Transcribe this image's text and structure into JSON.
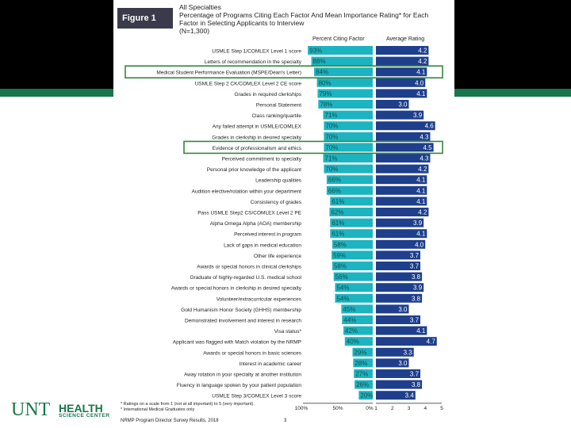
{
  "figure_label": "Figure 1",
  "logo": {
    "primary": "UNT",
    "secondary": "HEALTH",
    "tertiary": "SCIENCE CENTER"
  },
  "footnote_1": "* Ratings on a scale from 1 (not at all important) to 5 (very important).",
  "footnote_2": "* International Medical Graduates only",
  "source": "NRMP Program Director Survey Results, 2018",
  "page_number": "3",
  "colors": {
    "teal": "#1cb4c0",
    "navy": "#1f3f8c",
    "green": "#17764a",
    "highlight": "#2e8a3c"
  },
  "chart_data": {
    "type": "bar",
    "title": "All Specialties\nPercentage of Programs Citing Each Factor And Mean Importance Rating* for Each Factor in Selecting Applicants to Interview\n(N=1,300)",
    "title_lines": [
      "All Specialties",
      "Percentage of Programs Citing Each Factor And Mean Importance Rating* for Each",
      "Factor in Selecting Applicants to Interview",
      "(N=1,300)"
    ],
    "series": [
      {
        "name": "Percent Citing Factor",
        "unit": "%"
      },
      {
        "name": "Average Rating",
        "unit": "rating"
      }
    ],
    "categories": [
      "USMLE Step 1/COMLEX Level 1 score",
      "Letters of recommendation in the specialty",
      "Medical Student Performance Evaluation (MSPE/Dean's Letter)",
      "USMLE Step 2 CK/COMLEX Level 2 CE score",
      "Grades in required clerkships",
      "Personal Statement",
      "Class ranking/quartile",
      "Any failed attempt in USMLE/COMLEX",
      "Grades in clerkship in desired specialty",
      "Evidence of professionalism and ethics",
      "Perceived commitment to specialty",
      "Personal prior knowledge of the applicant",
      "Leadership qualities",
      "Audition elective/rotation within your department",
      "Consistency of grades",
      "Pass USMLE Step2 CS/COMLEX Level 2 PE",
      "Alpha Omega Alpha (AOA) membership",
      "Perceived interest in program",
      "Lack of gaps in medical education",
      "Other life experience",
      "Awards or special honors in clinical clerkships",
      "Graduate of highly-regarded U.S. medical school",
      "Awards or special honors in clerkship in desired specialty",
      "Volunteer/extracurricular experiences",
      "Gold Humanism Honor Society (GHHS) membership",
      "Demonstrated involvement and interest in research",
      "Visa status*",
      "Applicant was flagged with Match violation by the NRMP",
      "Awards or special honors in basic sciences",
      "Interest in academic career",
      "Away rotation in your specialty at another institution",
      "Fluency in language spoken by your patient population",
      "USMLE Step 3/COMLEX Level 3 score"
    ],
    "percent_citing": [
      93,
      88,
      84,
      80,
      79,
      78,
      71,
      70,
      70,
      70,
      71,
      70,
      66,
      66,
      61,
      62,
      61,
      61,
      58,
      59,
      58,
      56,
      54,
      54,
      45,
      44,
      42,
      40,
      29,
      28,
      27,
      26,
      20
    ],
    "percent_labels": [
      "93%",
      "88%",
      "84%",
      "80%",
      "79%",
      "78%",
      "71%",
      "70%",
      "70%",
      "70%",
      "71%",
      "70%",
      "66%",
      "66%",
      "61%",
      "62%",
      "61%",
      "61%",
      "58%",
      "59%",
      "58%",
      "56%",
      "54%",
      "54%",
      "45%",
      "44%",
      "42%",
      "40%",
      "29%",
      "28%",
      "27%",
      "26%",
      "20%"
    ],
    "average_rating": [
      4.2,
      4.2,
      4.1,
      4.0,
      4.1,
      3.0,
      3.9,
      4.6,
      4.3,
      4.5,
      4.3,
      4.2,
      4.1,
      4.1,
      4.1,
      4.2,
      3.9,
      4.1,
      4.0,
      3.7,
      3.7,
      3.8,
      3.9,
      3.8,
      3.0,
      3.7,
      4.1,
      4.7,
      3.3,
      3.0,
      3.7,
      3.8,
      3.4
    ],
    "rating_labels": [
      "4.2",
      "4.2",
      "4.1",
      "4.0",
      "4.1",
      "3.0",
      "3.9",
      "4.6",
      "4.3",
      "4.5",
      "4.3",
      "4.2",
      "4.1",
      "4.1",
      "4.1",
      "4.2",
      "3.9",
      "4.1",
      "4.0",
      "3.7",
      "3.7",
      "3.8",
      "3.9",
      "3.8",
      "3.0",
      "3.7",
      "4.1",
      "4.7",
      "3.3",
      "3.0",
      "3.7",
      "3.8",
      "3.4"
    ],
    "highlighted_categories": [
      "Medical Student Performance Evaluation (MSPE/Dean's Letter)",
      "Evidence of professionalism and ethics"
    ],
    "percent_axis": {
      "range": [
        100,
        0
      ],
      "ticks": [
        "100%",
        "50%",
        "0%"
      ]
    },
    "rating_axis": {
      "range": [
        1,
        5
      ],
      "ticks": [
        "1",
        "2",
        "3",
        "4",
        "5"
      ]
    }
  }
}
